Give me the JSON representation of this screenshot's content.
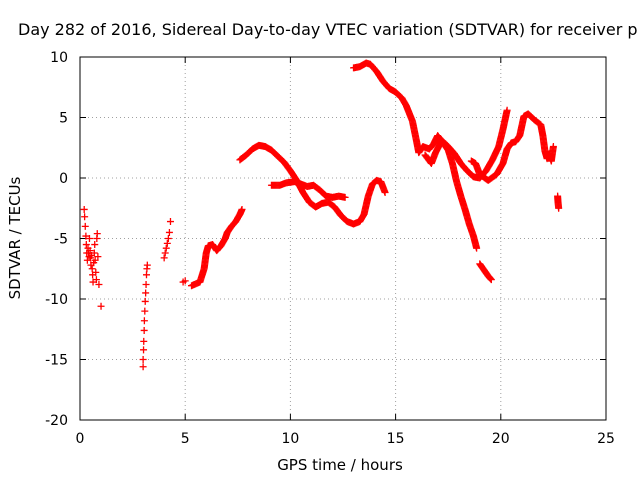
{
  "chart_data": {
    "type": "scatter",
    "title": "Day 282 of 2016, Sidereal Day-to-day VTEC variation (SDTVAR) for receiver p",
    "xlabel": "GPS time / hours",
    "ylabel": "SDTVAR / TECUs",
    "xlim": [
      0,
      25
    ],
    "ylim": [
      -20,
      10
    ],
    "xticks": [
      "0",
      "5",
      "10",
      "15",
      "20",
      "25"
    ],
    "yticks": [
      "10",
      "5",
      "0",
      "-5",
      "-10",
      "-15",
      "-20"
    ],
    "grid": true,
    "marker": "plus",
    "color": "#ff0000",
    "series": [
      {
        "points": [
          [
            0.2,
            -2.6
          ],
          [
            0.22,
            -3.2
          ],
          [
            0.25,
            -4.0
          ],
          [
            0.28,
            -4.8
          ],
          [
            0.3,
            -5.5
          ],
          [
            0.32,
            -6.2
          ],
          [
            0.35,
            -6.8
          ],
          [
            0.38,
            -5.8
          ],
          [
            0.4,
            -6.2
          ],
          [
            0.43,
            -6.5
          ],
          [
            0.45,
            -5.0
          ],
          [
            0.48,
            -6.0
          ],
          [
            0.5,
            -6.6
          ],
          [
            0.52,
            -7.2
          ],
          [
            0.55,
            -6.4
          ],
          [
            0.58,
            -7.5
          ],
          [
            0.6,
            -8.0
          ],
          [
            0.62,
            -8.6
          ],
          [
            0.65,
            -7.0
          ],
          [
            0.68,
            -6.2
          ],
          [
            0.7,
            -5.5
          ],
          [
            0.72,
            -6.8
          ],
          [
            0.75,
            -7.8
          ],
          [
            0.78,
            -8.4
          ],
          [
            0.8,
            -5.0
          ],
          [
            0.82,
            -4.6
          ],
          [
            0.85,
            -6.5
          ],
          [
            0.9,
            -8.8
          ],
          [
            1.0,
            -10.6
          ],
          [
            3.0,
            -15.6
          ],
          [
            3.0,
            -15.0
          ],
          [
            3.02,
            -14.2
          ],
          [
            3.03,
            -13.5
          ],
          [
            3.05,
            -12.6
          ],
          [
            3.06,
            -11.8
          ],
          [
            3.08,
            -11.0
          ],
          [
            3.1,
            -10.2
          ],
          [
            3.12,
            -9.5
          ],
          [
            3.14,
            -8.8
          ],
          [
            3.16,
            -8.0
          ],
          [
            3.18,
            -7.5
          ],
          [
            3.2,
            -7.2
          ],
          [
            4.0,
            -6.6
          ],
          [
            4.05,
            -6.2
          ],
          [
            4.1,
            -5.8
          ],
          [
            4.15,
            -5.4
          ],
          [
            4.2,
            -5.0
          ],
          [
            4.25,
            -4.5
          ],
          [
            4.3,
            -3.6
          ],
          [
            4.9,
            -8.6
          ],
          [
            5.0,
            -8.5
          ]
        ]
      }
    ],
    "segments": [
      [
        [
          5.3,
          -8.9
        ],
        [
          5.7,
          -8.6
        ],
        [
          5.9,
          -7.5
        ],
        [
          6.0,
          -6.2
        ],
        [
          6.1,
          -5.6
        ],
        [
          6.3,
          -5.5
        ],
        [
          6.5,
          -6.0
        ],
        [
          6.7,
          -5.6
        ],
        [
          6.9,
          -5.0
        ],
        [
          7.0,
          -4.5
        ],
        [
          7.2,
          -4.0
        ],
        [
          7.4,
          -3.6
        ],
        [
          7.6,
          -3.0
        ],
        [
          7.7,
          -2.6
        ]
      ],
      [
        [
          7.6,
          1.5
        ],
        [
          7.9,
          1.9
        ],
        [
          8.2,
          2.4
        ],
        [
          8.5,
          2.7
        ],
        [
          8.8,
          2.6
        ],
        [
          9.1,
          2.3
        ],
        [
          9.4,
          1.8
        ],
        [
          9.7,
          1.3
        ],
        [
          10.0,
          0.6
        ],
        [
          10.3,
          -0.2
        ],
        [
          10.6,
          -1.2
        ],
        [
          10.9,
          -2.0
        ],
        [
          11.2,
          -2.4
        ],
        [
          11.5,
          -2.1
        ],
        [
          11.8,
          -2.0
        ],
        [
          12.1,
          -2.4
        ],
        [
          12.4,
          -3.1
        ],
        [
          12.7,
          -3.6
        ],
        [
          13.0,
          -3.8
        ],
        [
          13.3,
          -3.6
        ],
        [
          13.5,
          -3.0
        ],
        [
          13.7,
          -1.5
        ],
        [
          13.9,
          -0.5
        ],
        [
          14.1,
          -0.2
        ],
        [
          14.3,
          -0.3
        ],
        [
          14.5,
          -1.2
        ]
      ],
      [
        [
          9.1,
          -0.6
        ],
        [
          9.5,
          -0.6
        ],
        [
          9.8,
          -0.4
        ],
        [
          10.2,
          -0.3
        ],
        [
          10.5,
          -0.5
        ],
        [
          10.8,
          -0.7
        ],
        [
          11.1,
          -0.6
        ],
        [
          11.4,
          -1.0
        ],
        [
          11.7,
          -1.5
        ],
        [
          12.0,
          -1.6
        ],
        [
          12.3,
          -1.5
        ],
        [
          12.6,
          -1.6
        ]
      ],
      [
        [
          13.0,
          9.1
        ],
        [
          13.3,
          9.2
        ],
        [
          13.6,
          9.5
        ],
        [
          13.8,
          9.4
        ],
        [
          14.1,
          8.8
        ],
        [
          14.4,
          8.0
        ],
        [
          14.7,
          7.4
        ],
        [
          15.0,
          7.1
        ],
        [
          15.3,
          6.6
        ],
        [
          15.5,
          6.0
        ],
        [
          15.8,
          4.7
        ],
        [
          16.0,
          3.0
        ],
        [
          16.1,
          2.1
        ],
        [
          16.3,
          2.6
        ],
        [
          16.6,
          2.4
        ],
        [
          16.8,
          2.8
        ],
        [
          17.0,
          3.5
        ],
        [
          17.3,
          2.8
        ],
        [
          17.5,
          2.3
        ],
        [
          17.7,
          1.2
        ],
        [
          17.9,
          -0.3
        ],
        [
          18.1,
          -1.5
        ],
        [
          18.3,
          -2.6
        ],
        [
          18.5,
          -3.8
        ],
        [
          18.7,
          -4.8
        ],
        [
          18.85,
          -5.8
        ]
      ],
      [
        [
          16.4,
          1.9
        ],
        [
          16.7,
          1.2
        ],
        [
          16.9,
          2.1
        ],
        [
          17.2,
          3.1
        ],
        [
          17.5,
          2.6
        ],
        [
          17.8,
          2.0
        ],
        [
          18.1,
          1.2
        ],
        [
          18.4,
          0.6
        ],
        [
          18.7,
          0.1
        ],
        [
          19.0,
          0.0
        ],
        [
          19.3,
          0.6
        ],
        [
          19.6,
          1.5
        ],
        [
          19.9,
          2.6
        ],
        [
          20.1,
          4.0
        ],
        [
          20.3,
          5.6
        ]
      ],
      [
        [
          19.0,
          -7.1
        ],
        [
          19.2,
          -7.6
        ],
        [
          19.4,
          -8.1
        ],
        [
          19.55,
          -8.4
        ]
      ],
      [
        [
          18.6,
          1.4
        ],
        [
          18.8,
          1.2
        ],
        [
          19.0,
          0.3
        ],
        [
          19.4,
          -0.2
        ],
        [
          19.8,
          0.3
        ],
        [
          20.1,
          1.2
        ],
        [
          20.3,
          2.4
        ],
        [
          20.5,
          2.9
        ],
        [
          20.7,
          3.0
        ],
        [
          20.9,
          3.5
        ],
        [
          21.1,
          5.1
        ],
        [
          21.3,
          5.3
        ],
        [
          21.6,
          4.8
        ],
        [
          21.9,
          4.4
        ],
        [
          22.0,
          3.5
        ],
        [
          22.1,
          2.2
        ],
        [
          22.2,
          1.6
        ],
        [
          22.3,
          2.0
        ],
        [
          22.4,
          1.4
        ],
        [
          22.5,
          2.6
        ]
      ],
      [
        [
          22.7,
          -1.5
        ],
        [
          22.72,
          -2.0
        ],
        [
          22.75,
          -2.5
        ]
      ]
    ]
  }
}
